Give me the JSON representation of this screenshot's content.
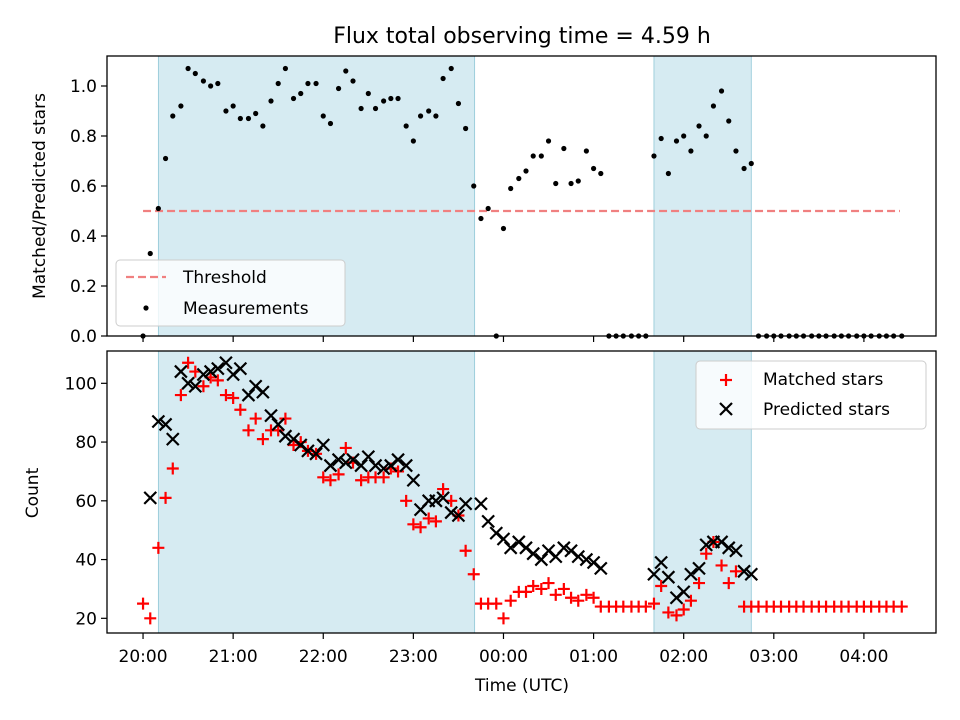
{
  "chart_data": [
    {
      "type": "scatter",
      "title": "Flux total observing time = 4.59 h",
      "xlabel": "",
      "ylabel": "Matched/Predicted stars",
      "xlim": [
        19.6,
        28.8
      ],
      "ylim": [
        0,
        1.12
      ],
      "yticks": [
        0.0,
        0.2,
        0.4,
        0.6,
        0.8,
        1.0
      ],
      "ytick_labels": [
        "0.0",
        "0.2",
        "0.4",
        "0.6",
        "0.8",
        "1.0"
      ],
      "xticks": [
        20,
        21,
        22,
        23,
        24,
        25,
        26,
        27,
        28
      ],
      "shaded_spans": [
        [
          20.17,
          23.68
        ],
        [
          25.67,
          26.75
        ]
      ],
      "threshold": {
        "name": "Threshold",
        "value": 0.5,
        "x_range": [
          20.0,
          28.4
        ],
        "color": "#f08080"
      },
      "legend": {
        "location": "lower-left",
        "entries": [
          "Threshold",
          "Measurements"
        ]
      },
      "series": [
        {
          "name": "Measurements",
          "color": "#000000",
          "marker": "dot",
          "x": [
            20.0,
            20.08,
            20.17,
            20.25,
            20.33,
            20.42,
            20.5,
            20.58,
            20.67,
            20.75,
            20.83,
            20.92,
            21.0,
            21.08,
            21.17,
            21.25,
            21.33,
            21.42,
            21.5,
            21.58,
            21.67,
            21.75,
            21.83,
            21.92,
            22.0,
            22.08,
            22.17,
            22.25,
            22.33,
            22.42,
            22.5,
            22.58,
            22.67,
            22.75,
            22.83,
            22.92,
            23.0,
            23.08,
            23.17,
            23.25,
            23.33,
            23.42,
            23.5,
            23.58,
            23.67,
            23.75,
            23.83,
            23.92,
            24.0,
            24.08,
            24.17,
            24.25,
            24.33,
            24.42,
            24.5,
            24.58,
            24.67,
            24.75,
            24.83,
            24.92,
            25.0,
            25.08,
            25.17,
            25.25,
            25.33,
            25.42,
            25.5,
            25.58,
            25.67,
            25.75,
            25.83,
            25.92,
            26.0,
            26.08,
            26.17,
            26.25,
            26.33,
            26.42,
            26.5,
            26.58,
            26.67,
            26.75,
            26.83,
            26.92,
            27.0,
            27.08,
            27.17,
            27.25,
            27.33,
            27.42,
            27.5,
            27.58,
            27.67,
            27.75,
            27.83,
            27.92,
            28.0,
            28.08,
            28.17,
            28.25,
            28.33,
            28.42
          ],
          "y": [
            0.0,
            0.33,
            0.51,
            0.71,
            0.88,
            0.92,
            1.07,
            1.05,
            1.02,
            1.0,
            1.01,
            0.9,
            0.92,
            0.87,
            0.87,
            0.89,
            0.84,
            0.94,
            1.01,
            1.07,
            0.95,
            0.97,
            1.01,
            1.01,
            0.88,
            0.85,
            0.99,
            1.06,
            1.02,
            0.91,
            0.97,
            0.91,
            0.94,
            0.95,
            0.95,
            0.84,
            0.78,
            0.88,
            0.9,
            0.88,
            1.03,
            1.07,
            0.93,
            0.83,
            0.6,
            0.47,
            0.51,
            0.0,
            0.43,
            0.59,
            0.63,
            0.66,
            0.72,
            0.72,
            0.78,
            0.61,
            0.75,
            0.61,
            0.62,
            0.74,
            0.67,
            0.65,
            0.0,
            0.0,
            0.0,
            0.0,
            0.0,
            0.0,
            0.72,
            0.79,
            0.65,
            0.78,
            0.8,
            0.74,
            0.84,
            0.8,
            0.92,
            0.98,
            0.86,
            0.74,
            0.67,
            0.69,
            0.0,
            0.0,
            0.0,
            0.0,
            0.0,
            0.0,
            0.0,
            0.0,
            0.0,
            0.0,
            0.0,
            0.0,
            0.0,
            0.0,
            0.0,
            0.0,
            0.0,
            0.0,
            0.0,
            0.0
          ]
        }
      ]
    },
    {
      "type": "scatter",
      "title": "",
      "xlabel": "Time (UTC)",
      "ylabel": "Count",
      "xlim": [
        19.6,
        28.8
      ],
      "ylim": [
        15,
        111
      ],
      "yticks": [
        20,
        40,
        60,
        80,
        100
      ],
      "ytick_labels": [
        "20",
        "40",
        "60",
        "80",
        "100"
      ],
      "xticks": [
        20,
        21,
        22,
        23,
        24,
        25,
        26,
        27,
        28
      ],
      "xtick_labels": [
        "20:00",
        "21:00",
        "22:00",
        "23:00",
        "00:00",
        "01:00",
        "02:00",
        "03:00",
        "04:00"
      ],
      "shaded_spans": [
        [
          20.17,
          23.68
        ],
        [
          25.67,
          26.75
        ]
      ],
      "legend": {
        "location": "top-right",
        "entries": [
          "Matched stars",
          "Predicted stars"
        ]
      },
      "series": [
        {
          "name": "Matched stars",
          "color": "#ff0000",
          "marker": "plus",
          "x": [
            20.0,
            20.08,
            20.17,
            20.25,
            20.33,
            20.42,
            20.5,
            20.58,
            20.67,
            20.75,
            20.83,
            20.92,
            21.0,
            21.08,
            21.17,
            21.25,
            21.33,
            21.42,
            21.5,
            21.58,
            21.67,
            21.75,
            21.83,
            21.92,
            22.0,
            22.08,
            22.17,
            22.25,
            22.33,
            22.42,
            22.5,
            22.58,
            22.67,
            22.75,
            22.83,
            22.92,
            23.0,
            23.08,
            23.17,
            23.25,
            23.33,
            23.42,
            23.5,
            23.58,
            23.67,
            23.75,
            23.83,
            23.92,
            24.0,
            24.08,
            24.17,
            24.25,
            24.33,
            24.42,
            24.5,
            24.58,
            24.67,
            24.75,
            24.83,
            24.92,
            25.0,
            25.08,
            25.17,
            25.25,
            25.33,
            25.42,
            25.5,
            25.58,
            25.67,
            25.75,
            25.83,
            25.92,
            26.0,
            26.08,
            26.17,
            26.25,
            26.33,
            26.42,
            26.5,
            26.58,
            26.67,
            26.75,
            26.83,
            26.92,
            27.0,
            27.08,
            27.17,
            27.25,
            27.33,
            27.42,
            27.5,
            27.58,
            27.67,
            27.75,
            27.83,
            27.92,
            28.0,
            28.08,
            28.17,
            28.25,
            28.33,
            28.42
          ],
          "y": [
            25,
            20,
            44,
            61,
            71,
            96,
            107,
            104,
            99,
            102,
            101,
            96,
            95,
            91,
            84,
            88,
            81,
            84,
            84,
            88,
            79,
            80,
            77,
            76,
            68,
            67,
            69,
            78,
            73,
            67,
            68,
            68,
            68,
            71,
            70,
            60,
            52,
            51,
            54,
            53,
            64,
            60,
            55,
            43,
            35,
            25,
            25,
            25,
            20,
            26,
            29,
            29,
            31,
            30,
            32,
            28,
            30,
            27,
            26,
            28,
            27,
            24,
            24,
            24,
            24,
            24,
            24,
            24,
            25,
            31,
            22,
            21,
            23,
            26,
            32,
            42,
            46,
            38,
            32,
            36,
            24,
            24,
            24,
            24,
            24,
            24,
            24,
            24,
            24,
            24,
            24,
            24,
            24,
            24,
            24,
            24,
            24,
            24,
            24,
            24,
            24,
            24
          ]
        },
        {
          "name": "Predicted stars",
          "color": "#000000",
          "marker": "x",
          "x": [
            20.08,
            20.17,
            20.25,
            20.33,
            20.42,
            20.5,
            20.58,
            20.67,
            20.75,
            20.83,
            20.92,
            21.0,
            21.08,
            21.17,
            21.25,
            21.33,
            21.42,
            21.5,
            21.58,
            21.67,
            21.75,
            21.83,
            21.92,
            22.0,
            22.08,
            22.17,
            22.25,
            22.33,
            22.42,
            22.5,
            22.58,
            22.67,
            22.75,
            22.83,
            22.92,
            23.0,
            23.08,
            23.17,
            23.25,
            23.33,
            23.42,
            23.5,
            23.58,
            23.75,
            23.83,
            23.92,
            24.0,
            24.08,
            24.17,
            24.25,
            24.33,
            24.42,
            24.5,
            24.58,
            24.67,
            24.75,
            24.83,
            24.92,
            25.0,
            25.08,
            25.67,
            25.75,
            25.83,
            25.92,
            26.0,
            26.08,
            26.17,
            26.25,
            26.33,
            26.42,
            26.5,
            26.58,
            26.67,
            26.75
          ],
          "y": [
            61,
            87,
            86,
            81,
            104,
            100,
            99,
            103,
            104,
            105,
            107,
            103,
            105,
            96,
            99,
            97,
            89,
            86,
            82,
            81,
            79,
            77,
            76,
            79,
            72,
            74,
            73,
            74,
            72,
            75,
            72,
            71,
            72,
            74,
            72,
            67,
            57,
            60,
            60,
            61,
            56,
            55,
            59,
            59,
            53,
            49,
            47,
            44,
            46,
            44,
            42,
            40,
            43,
            41,
            44,
            43,
            41,
            40,
            39,
            37,
            35,
            39,
            34,
            27,
            29,
            35,
            37,
            45,
            46,
            46,
            44,
            43,
            36,
            35
          ]
        }
      ]
    }
  ]
}
